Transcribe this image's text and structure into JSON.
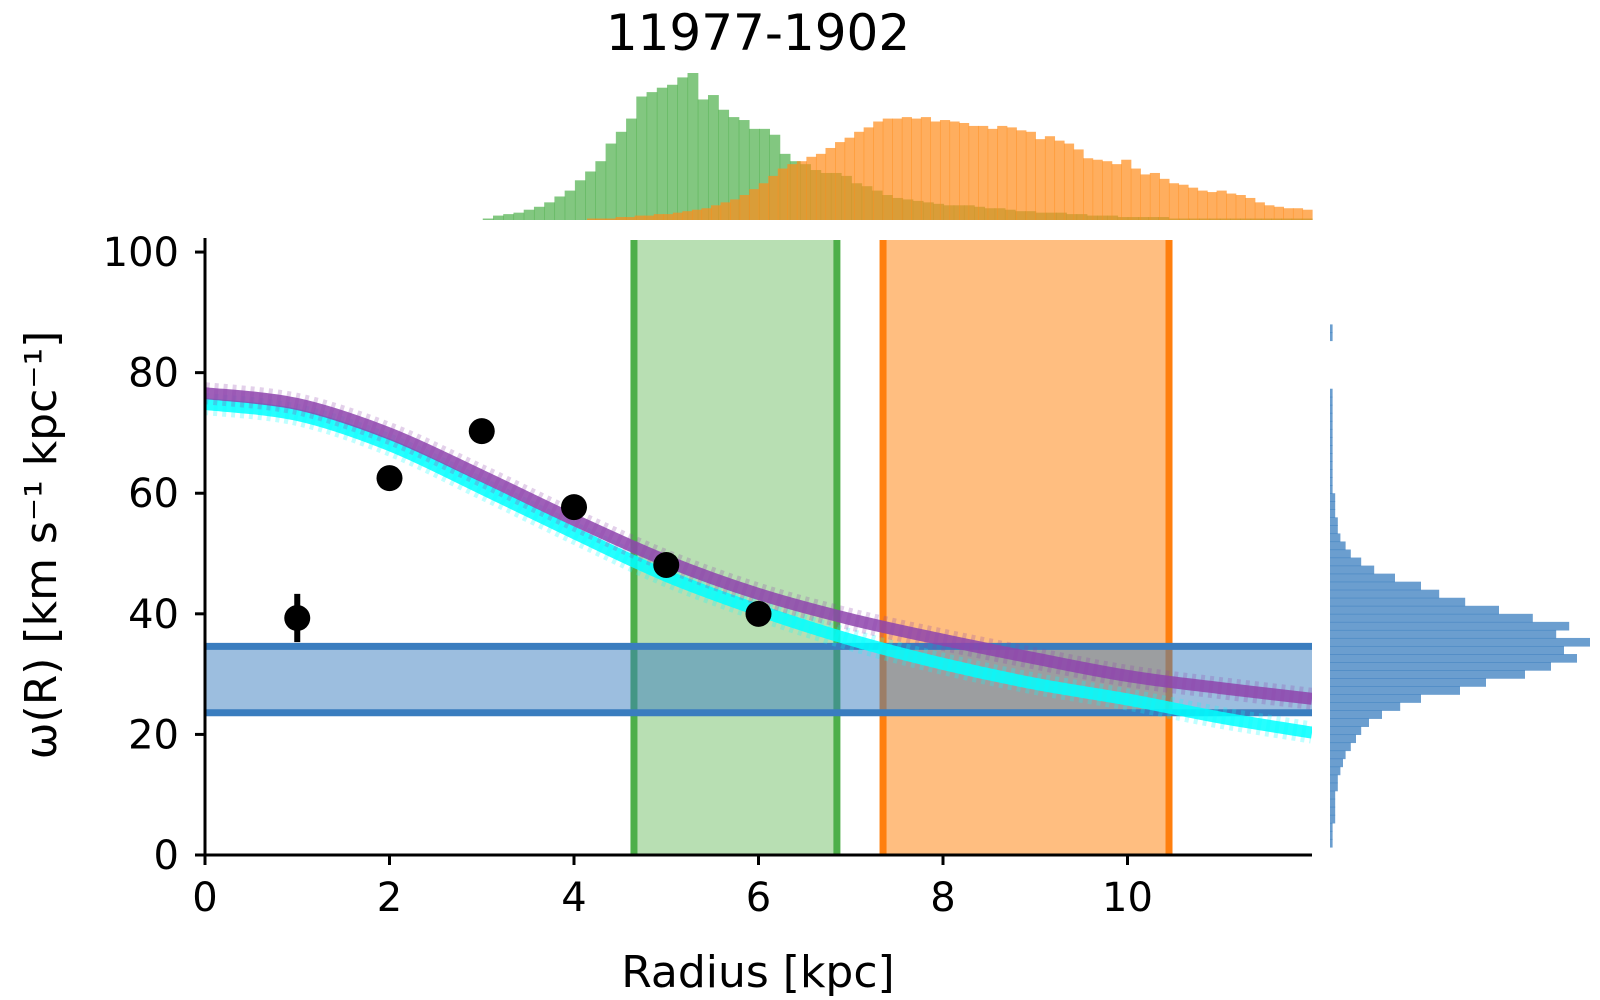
{
  "chart_data": {
    "type": "line",
    "title": "11977-1902",
    "xlabel": "Radius [kpc]",
    "ylabel": "ω(R) [km s⁻¹ kpc⁻¹]",
    "xlim": [
      0,
      12
    ],
    "ylim": [
      0,
      102
    ],
    "xticks": [
      0,
      2,
      4,
      6,
      8,
      10
    ],
    "yticks": [
      0,
      20,
      40,
      60,
      80,
      100
    ],
    "grid": false,
    "colors": {
      "curve_purple": "#8e44ad",
      "curve_cyan": "#00ffff",
      "points": "#000000",
      "green": "#4daf4a",
      "green_fill": "#b8dfb3",
      "orange": "#ff7f0e",
      "orange_fill": "#ffbe80",
      "blue": "#3a7dbf",
      "blue_fill": "#9dbfe0"
    },
    "points": [
      {
        "x": 1,
        "y": 39.3,
        "yerr": 4
      },
      {
        "x": 2,
        "y": 62.5,
        "yerr": 0
      },
      {
        "x": 3,
        "y": 70.3,
        "yerr": 0
      },
      {
        "x": 4,
        "y": 57.7,
        "yerr": 0
      },
      {
        "x": 5,
        "y": 48.1,
        "yerr": 0
      },
      {
        "x": 6,
        "y": 40.0,
        "yerr": 0
      }
    ],
    "series": [
      {
        "color": "purple",
        "x": [
          0,
          1,
          2,
          3,
          4,
          5,
          6,
          7,
          8,
          9,
          10,
          11,
          12
        ],
        "y": [
          76.6,
          74.8,
          69.9,
          62.9,
          55.6,
          48.8,
          43.3,
          39.1,
          35.7,
          32.6,
          29.7,
          27.7,
          25.9
        ]
      },
      {
        "color": "cyan",
        "x": [
          0,
          1,
          2,
          3,
          4,
          5,
          6,
          7,
          8,
          9,
          10,
          11,
          12
        ],
        "y": [
          74.8,
          73.0,
          68.0,
          60.8,
          53.4,
          46.3,
          40.6,
          35.7,
          31.7,
          28.4,
          25.8,
          22.8,
          20.3
        ]
      }
    ],
    "vertical_bands": [
      {
        "color": "green",
        "x_min": 4.65,
        "x_max": 6.85
      },
      {
        "color": "orange",
        "x_min": 7.35,
        "x_max": 10.45
      }
    ],
    "horizontal_band": {
      "color": "blue",
      "y_min": 23.6,
      "y_max": 34.6
    },
    "top_histograms": [
      {
        "color": "green",
        "x_start": 2.9,
        "x_end": 12.0,
        "values": [
          0,
          0.01,
          0.03,
          0.04,
          0.05,
          0.07,
          0.09,
          0.12,
          0.16,
          0.2,
          0.27,
          0.33,
          0.4,
          0.52,
          0.6,
          0.69,
          0.84,
          0.87,
          0.9,
          0.92,
          0.97,
          1.0,
          0.82,
          0.85,
          0.75,
          0.7,
          0.68,
          0.62,
          0.62,
          0.58,
          0.45,
          0.4,
          0.38,
          0.34,
          0.32,
          0.32,
          0.3,
          0.25,
          0.23,
          0.2,
          0.17,
          0.15,
          0.14,
          0.13,
          0.12,
          0.11,
          0.1,
          0.1,
          0.1,
          0.09,
          0.08,
          0.08,
          0.07,
          0.06,
          0.06,
          0.05,
          0.05,
          0.05,
          0.04,
          0.04,
          0.03,
          0.03,
          0.03,
          0.02,
          0.02,
          0.02,
          0.02,
          0.02,
          0.01,
          0.01,
          0.01,
          0.01,
          0.01,
          0.01,
          0.01,
          0.01,
          0.01,
          0.01,
          0.01,
          0.01,
          0.01,
          0.01
        ]
      },
      {
        "color": "orange",
        "x_start": 2.9,
        "x_end": 12.0,
        "values": [
          0,
          0,
          0,
          0,
          0,
          0,
          0,
          0,
          0,
          0,
          0,
          0,
          0.01,
          0.01,
          0.01,
          0.02,
          0.02,
          0.03,
          0.03,
          0.04,
          0.04,
          0.05,
          0.06,
          0.07,
          0.08,
          0.1,
          0.12,
          0.14,
          0.17,
          0.21,
          0.25,
          0.3,
          0.35,
          0.38,
          0.4,
          0.43,
          0.45,
          0.49,
          0.53,
          0.56,
          0.6,
          0.63,
          0.67,
          0.69,
          0.69,
          0.7,
          0.69,
          0.7,
          0.67,
          0.68,
          0.67,
          0.66,
          0.64,
          0.64,
          0.62,
          0.64,
          0.63,
          0.61,
          0.6,
          0.55,
          0.57,
          0.54,
          0.52,
          0.48,
          0.42,
          0.41,
          0.4,
          0.38,
          0.41,
          0.35,
          0.31,
          0.32,
          0.28,
          0.25,
          0.24,
          0.22,
          0.2,
          0.19,
          0.2,
          0.18,
          0.17,
          0.15,
          0.12,
          0.1,
          0.09,
          0.08,
          0.08,
          0.07
        ]
      }
    ],
    "right_histogram": {
      "color": "blue",
      "y_start": 0,
      "y_end": 88,
      "values": [
        0,
        0.01,
        0.01,
        0.01,
        0.02,
        0.02,
        0.02,
        0.02,
        0.03,
        0.03,
        0.04,
        0.05,
        0.06,
        0.08,
        0.1,
        0.12,
        0.15,
        0.2,
        0.27,
        0.35,
        0.5,
        0.6,
        0.75,
        0.85,
        0.95,
        0.9,
        1.0,
        0.87,
        0.92,
        0.78,
        0.65,
        0.52,
        0.42,
        0.35,
        0.25,
        0.17,
        0.12,
        0.08,
        0.06,
        0.04,
        0.03,
        0.03,
        0.02,
        0.02,
        0.02,
        0.01,
        0.01,
        0.01,
        0.01,
        0.01,
        0.01,
        0.01,
        0.01,
        0.01,
        0.01,
        0.01,
        0.01,
        0.01,
        0,
        0,
        0,
        0,
        0,
        0,
        0.01,
        0.01
      ]
    }
  }
}
